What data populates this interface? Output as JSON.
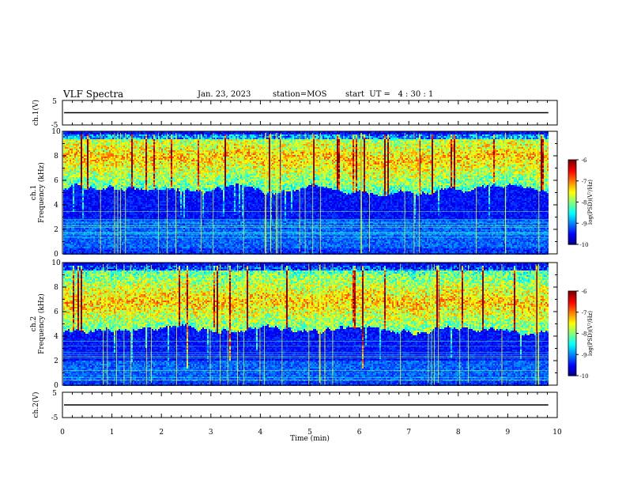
{
  "header": {
    "title": "VLF Spectra",
    "date": "Jan. 23, 2023",
    "station": "station=MOS",
    "start": "start  UT =   4 : 30 : 1"
  },
  "chart_data": {
    "type": "heatmap",
    "xlabel": "Time  (min)",
    "xlim": [
      0,
      10
    ],
    "x_ticks": [
      "0",
      "1",
      "2",
      "3",
      "4",
      "5",
      "6",
      "7",
      "8",
      "9",
      "10"
    ],
    "waveform_panels": [
      {
        "ylabel": "ch.1(V)",
        "ylim": [
          -5,
          5
        ],
        "y_ticks": [
          "5",
          "-5"
        ],
        "trace_level": 0
      },
      {
        "ylabel": "ch.2(V)",
        "ylim": [
          -5,
          5
        ],
        "y_ticks": [
          "5",
          "-5"
        ],
        "trace_level": 0
      }
    ],
    "spectrogram_panels": [
      {
        "ylabel_1": "ch.1",
        "ylabel_2": "Frequency  (kHz)",
        "ylim": [
          0,
          10
        ],
        "y_ticks": [
          "0",
          "2",
          "4",
          "6",
          "8",
          "10"
        ],
        "band_center_khz": 7.8,
        "band_low_khz": 5.2,
        "background_band_khz": [
          0.4,
          2.8
        ],
        "colorbar": {
          "label": "log(PSD)(V²/Hz)",
          "range": [
            -10,
            -6
          ],
          "ticks": [
            "-6",
            "-7",
            "-8",
            "-9",
            "-10"
          ]
        }
      },
      {
        "ylabel_1": "ch.2",
        "ylabel_2": "Frequency  (kHz)",
        "ylim": [
          0,
          10
        ],
        "y_ticks": [
          "0",
          "2",
          "4",
          "6",
          "8",
          "10"
        ],
        "band_center_khz": 6.8,
        "band_low_khz": 4.5,
        "background_band_khz": [
          0.3,
          2.0
        ],
        "colorbar": {
          "label": "log(PSD)(V²/Hz)",
          "range": [
            -10,
            -6
          ],
          "ticks": [
            "-6",
            "-7",
            "-8",
            "-9",
            "-10"
          ]
        }
      }
    ],
    "data_end_min": 9.82,
    "colors": {
      "frame": "#000000",
      "background": "#ffffff"
    }
  }
}
